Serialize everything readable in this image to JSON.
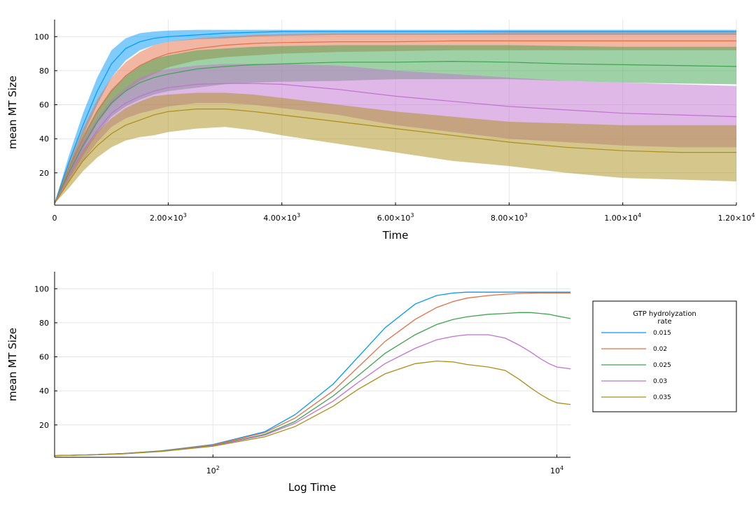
{
  "chart_data": [
    {
      "type": "area",
      "xlabel": "Time",
      "ylabel": "mean MT Size",
      "xlim": [
        0,
        12000
      ],
      "ylim": [
        1,
        110
      ],
      "xticks": [
        0,
        2000,
        4000,
        6000,
        8000,
        10000,
        12000
      ],
      "xtick_labels": [
        {
          "base": "0",
          "exp": ""
        },
        {
          "base": "2.00×10",
          "exp": "3"
        },
        {
          "base": "4.00×10",
          "exp": "3"
        },
        {
          "base": "6.00×10",
          "exp": "3"
        },
        {
          "base": "8.00×10",
          "exp": "3"
        },
        {
          "base": "1.00×10",
          "exp": "4"
        },
        {
          "base": "1.20×10",
          "exp": "4"
        }
      ],
      "yticks": [
        20,
        40,
        60,
        80,
        100
      ],
      "ytick_labels": [
        "20",
        "40",
        "60",
        "80",
        "100"
      ],
      "grid": true,
      "x": [
        0,
        250,
        500,
        750,
        1000,
        1250,
        1500,
        1750,
        2000,
        2500,
        3000,
        3500,
        4000,
        5000,
        6000,
        7000,
        8000,
        9000,
        10000,
        11000,
        12000
      ],
      "series": [
        {
          "color": "#009AFA",
          "mean": [
            2,
            26,
            48,
            68,
            84,
            93,
            97,
            99,
            100,
            101,
            102,
            102.5,
            103,
            103,
            103,
            103,
            103,
            103,
            103,
            103,
            103
          ],
          "upper": [
            2,
            30,
            55,
            76,
            92,
            99,
            102,
            103,
            103.5,
            104,
            104,
            104,
            104,
            104,
            104,
            104,
            104,
            104,
            104,
            104,
            104
          ],
          "lower": [
            2,
            22,
            42,
            60,
            76,
            86,
            92,
            95,
            97,
            98.5,
            99,
            100,
            100.5,
            101,
            101,
            101,
            101,
            101,
            101,
            101,
            101
          ]
        },
        {
          "color": "#E36F47",
          "mean": [
            2,
            22,
            40,
            56,
            68,
            77,
            83,
            87,
            90,
            93,
            95,
            96,
            96.5,
            97,
            97,
            97.5,
            97.5,
            97.5,
            97.5,
            97.5,
            97.5
          ],
          "upper": [
            2,
            26,
            46,
            63,
            76,
            85,
            91,
            95,
            97,
            99,
            100,
            101,
            101.5,
            102,
            102,
            102,
            102.5,
            102.5,
            102.5,
            102.5,
            102.5
          ],
          "lower": [
            2,
            18,
            34,
            49,
            60,
            68,
            74,
            78,
            82,
            86,
            88,
            89,
            90,
            91,
            91.5,
            92,
            92,
            92,
            92,
            92,
            92
          ]
        },
        {
          "color": "#3EA44E",
          "mean": [
            2,
            20,
            36,
            50,
            61,
            68,
            73,
            76,
            78,
            81,
            82.5,
            83.5,
            84,
            85,
            85,
            85.5,
            85,
            84,
            83.5,
            83,
            82.5
          ],
          "upper": [
            2,
            24,
            42,
            57,
            69,
            77,
            83,
            87,
            89,
            92,
            93,
            94,
            94.5,
            95,
            95,
            95,
            95,
            94.5,
            94,
            94,
            94
          ],
          "lower": [
            2,
            16,
            30,
            43,
            53,
            59,
            63,
            66,
            68,
            70,
            72,
            73,
            73.5,
            74,
            75,
            75,
            75,
            74,
            73,
            72.5,
            72
          ]
        },
        {
          "color": "#C271D2",
          "mean": [
            2,
            18,
            33,
            45,
            55,
            61,
            65,
            68,
            70,
            72,
            72.5,
            72.5,
            72,
            69,
            65,
            62,
            59,
            57,
            55,
            54,
            53
          ],
          "upper": [
            2,
            22,
            39,
            52,
            63,
            70,
            76,
            79,
            81,
            83,
            84,
            84,
            84,
            83,
            80,
            78,
            76,
            74,
            73,
            72,
            71
          ],
          "lower": [
            2,
            14,
            27,
            38,
            47,
            52,
            55,
            57,
            59,
            61,
            61,
            60,
            58,
            54,
            48,
            44,
            40,
            38,
            36,
            35,
            35
          ]
        },
        {
          "color": "#AC8D18",
          "mean": [
            2,
            15,
            27,
            36,
            43,
            48,
            51,
            54,
            56,
            57.5,
            57.5,
            56,
            54,
            50,
            46,
            42,
            38,
            35,
            33,
            32,
            32
          ],
          "upper": [
            2,
            19,
            33,
            44,
            52,
            58,
            62,
            65,
            66,
            67,
            67,
            66,
            64,
            60,
            56,
            53,
            50,
            49,
            48,
            48,
            48
          ],
          "lower": [
            2,
            11,
            21,
            29,
            35,
            39,
            41,
            42,
            44,
            46,
            47,
            45,
            42,
            37,
            32,
            27,
            24,
            20,
            17,
            16,
            15
          ]
        }
      ]
    },
    {
      "type": "line",
      "xlabel": "Log Time",
      "ylabel": "mean MT Size",
      "xscale": "log",
      "xlim": [
        12,
        12000
      ],
      "ylim": [
        1,
        110
      ],
      "xticks": [
        100,
        10000
      ],
      "xtick_labels": [
        {
          "base": "10",
          "exp": "2"
        },
        {
          "base": "10",
          "exp": "4"
        }
      ],
      "yticks": [
        20,
        40,
        60,
        80,
        100
      ],
      "ytick_labels": [
        "20",
        "40",
        "60",
        "80",
        "100"
      ],
      "grid": true,
      "legend": {
        "title_lines": [
          "GTP hydrolyzation",
          "rate"
        ],
        "placement": "right"
      },
      "x": [
        12,
        20,
        30,
        50,
        100,
        200,
        300,
        500,
        700,
        1000,
        1500,
        2000,
        2500,
        3000,
        4000,
        5000,
        6000,
        7000,
        8000,
        9000,
        10000,
        12000
      ],
      "series": [
        {
          "name": "0.015",
          "color": "#009AFA",
          "values": [
            2,
            2.5,
            3.2,
            4.8,
            8.5,
            16,
            26,
            44,
            60,
            77,
            91,
            96,
            97.5,
            98,
            98,
            98,
            98,
            98,
            98,
            98,
            98,
            98
          ]
        },
        {
          "name": "0.02",
          "color": "#E36F47",
          "values": [
            2,
            2.5,
            3.2,
            4.7,
            8.3,
            15.5,
            24,
            40,
            54,
            69,
            82,
            89,
            92.5,
            94.5,
            96,
            96.8,
            97.2,
            97.4,
            97.5,
            97.5,
            97.5,
            97.5
          ]
        },
        {
          "name": "0.025",
          "color": "#3EA44E",
          "values": [
            2,
            2.5,
            3.2,
            4.6,
            8.0,
            14.5,
            22,
            37,
            49,
            62,
            73,
            79,
            82,
            83.5,
            85,
            85.5,
            86,
            86,
            85.5,
            85,
            84,
            82.5
          ]
        },
        {
          "name": "0.03",
          "color": "#C271D2",
          "values": [
            2,
            2.5,
            3.1,
            4.5,
            7.8,
            14,
            21,
            34,
            45,
            56,
            65,
            70,
            72,
            73,
            73,
            71,
            67,
            63,
            59,
            56,
            54,
            53
          ]
        },
        {
          "name": "0.035",
          "color": "#AC8D18",
          "values": [
            2,
            2.4,
            3.0,
            4.4,
            7.5,
            13,
            19,
            31,
            41,
            50,
            56,
            57.5,
            57,
            55.5,
            54,
            52,
            47,
            42,
            38,
            35,
            33,
            32
          ]
        }
      ]
    }
  ]
}
